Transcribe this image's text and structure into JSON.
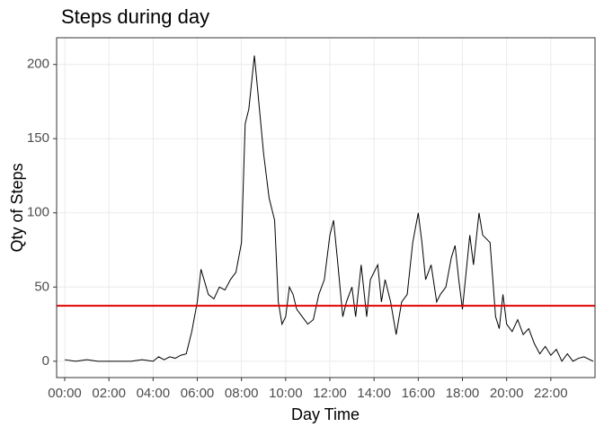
{
  "chart_data": {
    "type": "line",
    "title": "Steps during day",
    "x_label": "Day Time",
    "y_label": "Qty of Steps",
    "x": [
      0,
      30,
      60,
      90,
      120,
      150,
      180,
      210,
      240,
      255,
      270,
      285,
      300,
      315,
      330,
      345,
      360,
      370,
      390,
      405,
      420,
      435,
      450,
      465,
      480,
      490,
      500,
      515,
      525,
      540,
      555,
      570,
      580,
      590,
      600,
      610,
      620,
      630,
      645,
      660,
      675,
      690,
      705,
      720,
      730,
      740,
      755,
      765,
      780,
      790,
      805,
      820,
      830,
      850,
      860,
      870,
      885,
      900,
      915,
      930,
      945,
      960,
      970,
      980,
      995,
      1010,
      1020,
      1035,
      1050,
      1060,
      1070,
      1080,
      1090,
      1100,
      1110,
      1125,
      1135,
      1155,
      1170,
      1180,
      1190,
      1200,
      1215,
      1230,
      1245,
      1260,
      1275,
      1290,
      1305,
      1320,
      1335,
      1350,
      1365,
      1380,
      1395,
      1410,
      1435
    ],
    "values": [
      1,
      0,
      1,
      0,
      0,
      0,
      0,
      1,
      0,
      3,
      1,
      3,
      2,
      4,
      5,
      20,
      40,
      62,
      45,
      42,
      50,
      48,
      55,
      60,
      80,
      160,
      170,
      206,
      180,
      140,
      110,
      95,
      40,
      25,
      30,
      50,
      45,
      35,
      30,
      25,
      28,
      45,
      55,
      85,
      95,
      70,
      30,
      40,
      50,
      30,
      65,
      30,
      55,
      65,
      40,
      55,
      40,
      18,
      40,
      45,
      80,
      100,
      80,
      55,
      65,
      40,
      45,
      50,
      70,
      78,
      55,
      35,
      60,
      85,
      65,
      100,
      85,
      80,
      30,
      22,
      45,
      25,
      20,
      28,
      18,
      22,
      12,
      5,
      10,
      4,
      8,
      0,
      5,
      0,
      2,
      3,
      0
    ],
    "color": "#000000",
    "hline": 37.4,
    "hline_color": "#e00000",
    "xlim": [
      -22,
      1440
    ],
    "ylim": [
      -11,
      218
    ],
    "xticks": [
      {
        "value": 0,
        "label": "00:00"
      },
      {
        "value": 120,
        "label": "02:00"
      },
      {
        "value": 240,
        "label": "04:00"
      },
      {
        "value": 360,
        "label": "06:00"
      },
      {
        "value": 480,
        "label": "08:00"
      },
      {
        "value": 600,
        "label": "10:00"
      },
      {
        "value": 720,
        "label": "12:00"
      },
      {
        "value": 840,
        "label": "14:00"
      },
      {
        "value": 960,
        "label": "16:00"
      },
      {
        "value": 1080,
        "label": "18:00"
      },
      {
        "value": 1200,
        "label": "20:00"
      },
      {
        "value": 1320,
        "label": "22:00"
      }
    ],
    "yticks": [
      0,
      50,
      100,
      150,
      200
    ],
    "grid": true
  }
}
